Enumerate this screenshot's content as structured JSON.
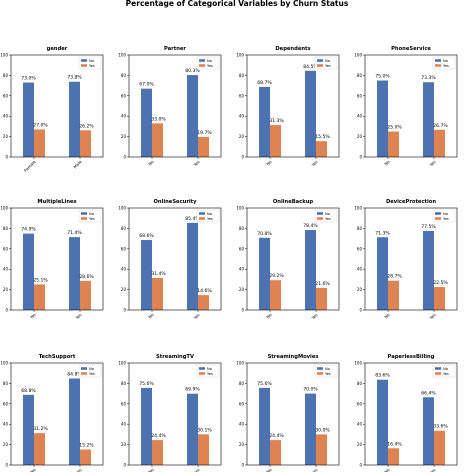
{
  "figure": {
    "title": "Percentage of Categorical Variables by Churn Status"
  },
  "colors": {
    "No": "#4c72b0",
    "Yes": "#dd8452",
    "axis": "#000000"
  },
  "chart_data": [
    {
      "type": "bar",
      "title": "gender",
      "categories": [
        "Female",
        "Male"
      ],
      "tick_rotation": 45,
      "series": [
        {
          "name": "No",
          "values": [
            73.0,
            73.8
          ]
        },
        {
          "name": "Yes",
          "values": [
            27.0,
            26.2
          ]
        }
      ],
      "labels": {
        "No": [
          "73.0%",
          "73.8%"
        ],
        "Yes": [
          "27.0%",
          "26.2%"
        ]
      },
      "yticks": [
        0,
        20,
        40,
        60,
        80,
        100
      ],
      "ylim": [
        0,
        100
      ],
      "legend": "top-right"
    },
    {
      "type": "bar",
      "title": "Partner",
      "categories": [
        "No",
        "Yes"
      ],
      "tick_rotation": 45,
      "series": [
        {
          "name": "No",
          "values": [
            67.0,
            80.3
          ]
        },
        {
          "name": "Yes",
          "values": [
            33.0,
            19.7
          ]
        }
      ],
      "labels": {
        "No": [
          "67.0%",
          "80.3%"
        ],
        "Yes": [
          "33.0%",
          "19.7%"
        ]
      },
      "yticks": [
        0,
        20,
        40,
        60,
        80,
        100
      ],
      "ylim": [
        0,
        100
      ],
      "legend": "top-right"
    },
    {
      "type": "bar",
      "title": "Dependents",
      "categories": [
        "No",
        "Yes"
      ],
      "tick_rotation": 45,
      "series": [
        {
          "name": "No",
          "values": [
            68.7,
            84.5
          ]
        },
        {
          "name": "Yes",
          "values": [
            31.3,
            15.5
          ]
        }
      ],
      "labels": {
        "No": [
          "68.7%",
          "84.5%"
        ],
        "Yes": [
          "31.3%",
          "15.5%"
        ]
      },
      "yticks": [
        0,
        20,
        40,
        60,
        80,
        100
      ],
      "ylim": [
        0,
        100
      ],
      "legend": "top-right"
    },
    {
      "type": "bar",
      "title": "PhoneService",
      "categories": [
        "No",
        "Yes"
      ],
      "tick_rotation": 45,
      "series": [
        {
          "name": "No",
          "values": [
            75.0,
            73.3
          ]
        },
        {
          "name": "Yes",
          "values": [
            25.0,
            26.7
          ]
        }
      ],
      "labels": {
        "No": [
          "75.0%",
          "73.3%"
        ],
        "Yes": [
          "25.0%",
          "26.7%"
        ]
      },
      "yticks": [
        0,
        20,
        40,
        60,
        80,
        100
      ],
      "ylim": [
        0,
        100
      ],
      "legend": "top-right"
    },
    {
      "type": "bar",
      "title": "MultipleLines",
      "categories": [
        "No",
        "Yes"
      ],
      "tick_rotation": 45,
      "series": [
        {
          "name": "No",
          "values": [
            74.9,
            71.4
          ]
        },
        {
          "name": "Yes",
          "values": [
            25.1,
            28.6
          ]
        }
      ],
      "labels": {
        "No": [
          "74.9%",
          "71.4%"
        ],
        "Yes": [
          "25.1%",
          "28.6%"
        ]
      },
      "yticks": [
        0,
        20,
        40,
        60,
        80,
        100
      ],
      "ylim": [
        0,
        100
      ],
      "legend": "top-right"
    },
    {
      "type": "bar",
      "title": "OnlineSecurity",
      "categories": [
        "No",
        "Yes"
      ],
      "tick_rotation": 45,
      "series": [
        {
          "name": "No",
          "values": [
            68.6,
            85.4
          ]
        },
        {
          "name": "Yes",
          "values": [
            31.4,
            14.6
          ]
        }
      ],
      "labels": {
        "No": [
          "68.6%",
          "85.4%"
        ],
        "Yes": [
          "31.4%",
          "14.6%"
        ]
      },
      "yticks": [
        0,
        20,
        40,
        60,
        80,
        100
      ],
      "ylim": [
        0,
        100
      ],
      "legend": "top-right"
    },
    {
      "type": "bar",
      "title": "OnlineBackup",
      "categories": [
        "No",
        "Yes"
      ],
      "tick_rotation": 45,
      "series": [
        {
          "name": "No",
          "values": [
            70.8,
            78.4
          ]
        },
        {
          "name": "Yes",
          "values": [
            29.2,
            21.6
          ]
        }
      ],
      "labels": {
        "No": [
          "70.8%",
          "78.4%"
        ],
        "Yes": [
          "29.2%",
          "21.6%"
        ]
      },
      "yticks": [
        0,
        20,
        40,
        60,
        80,
        100
      ],
      "ylim": [
        0,
        100
      ],
      "legend": "top-right"
    },
    {
      "type": "bar",
      "title": "DeviceProtection",
      "categories": [
        "No",
        "Yes"
      ],
      "tick_rotation": 45,
      "series": [
        {
          "name": "No",
          "values": [
            71.3,
            77.5
          ]
        },
        {
          "name": "Yes",
          "values": [
            28.7,
            22.5
          ]
        }
      ],
      "labels": {
        "No": [
          "71.3%",
          "77.5%"
        ],
        "Yes": [
          "28.7%",
          "22.5%"
        ]
      },
      "yticks": [
        0,
        20,
        40,
        60,
        80,
        100
      ],
      "ylim": [
        0,
        100
      ],
      "legend": "top-right"
    },
    {
      "type": "bar",
      "title": "TechSupport",
      "categories": [
        "No",
        "Yes"
      ],
      "tick_rotation": 45,
      "series": [
        {
          "name": "No",
          "values": [
            68.8,
            84.8
          ]
        },
        {
          "name": "Yes",
          "values": [
            31.2,
            15.2
          ]
        }
      ],
      "labels": {
        "No": [
          "68.8%",
          "84.8%"
        ],
        "Yes": [
          "31.2%",
          "15.2%"
        ]
      },
      "yticks": [
        0,
        20,
        40,
        60,
        80,
        100
      ],
      "ylim": [
        0,
        100
      ],
      "legend": "top-right"
    },
    {
      "type": "bar",
      "title": "StreamingTV",
      "categories": [
        "No",
        "Yes"
      ],
      "tick_rotation": 45,
      "series": [
        {
          "name": "No",
          "values": [
            75.6,
            69.9
          ]
        },
        {
          "name": "Yes",
          "values": [
            24.4,
            30.1
          ]
        }
      ],
      "labels": {
        "No": [
          "75.6%",
          "69.9%"
        ],
        "Yes": [
          "24.4%",
          "30.1%"
        ]
      },
      "yticks": [
        0,
        20,
        40,
        60,
        80,
        100
      ],
      "ylim": [
        0,
        100
      ],
      "legend": "top-right"
    },
    {
      "type": "bar",
      "title": "StreamingMovies",
      "categories": [
        "No",
        "Yes"
      ],
      "tick_rotation": 45,
      "series": [
        {
          "name": "No",
          "values": [
            75.6,
            70.0
          ]
        },
        {
          "name": "Yes",
          "values": [
            24.4,
            30.0
          ]
        }
      ],
      "labels": {
        "No": [
          "75.6%",
          "70.0%"
        ],
        "Yes": [
          "24.4%",
          "30.0%"
        ]
      },
      "yticks": [
        0,
        20,
        40,
        60,
        80,
        100
      ],
      "ylim": [
        0,
        100
      ],
      "legend": "top-right"
    },
    {
      "type": "bar",
      "title": "PaperlessBilling",
      "categories": [
        "No",
        "Yes"
      ],
      "tick_rotation": 45,
      "series": [
        {
          "name": "No",
          "values": [
            83.6,
            66.4
          ]
        },
        {
          "name": "Yes",
          "values": [
            16.4,
            33.6
          ]
        }
      ],
      "labels": {
        "No": [
          "83.6%",
          "66.4%"
        ],
        "Yes": [
          "16.4%",
          "33.6%"
        ]
      },
      "yticks": [
        0,
        20,
        40,
        60,
        80,
        100
      ],
      "ylim": [
        0,
        100
      ],
      "legend": "top-right"
    }
  ]
}
